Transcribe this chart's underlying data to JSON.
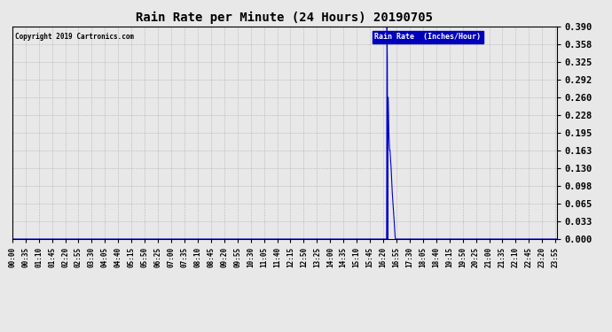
{
  "title": "Rain Rate per Minute (24 Hours) 20190705",
  "copyright_text": "Copyright 2019 Cartronics.com",
  "legend_label": "Rain Rate  (Inches/Hour)",
  "line_color": "#0000cc",
  "background_color": "#e8e8e8",
  "plot_bg_color": "#e8e8e8",
  "legend_bg_color": "#0000bb",
  "legend_text_color": "#ffffff",
  "yticks": [
    0.0,
    0.033,
    0.065,
    0.098,
    0.13,
    0.163,
    0.195,
    0.228,
    0.26,
    0.292,
    0.325,
    0.358,
    0.39
  ],
  "ymax": 0.39,
  "total_minutes": 1440,
  "rain_data": [
    [
      980,
      0.0
    ],
    [
      981,
      0.0
    ],
    [
      982,
      0.0
    ],
    [
      983,
      0.0
    ],
    [
      984,
      0.0
    ],
    [
      985,
      0.0
    ],
    [
      986,
      0.0
    ],
    [
      987,
      0.0
    ],
    [
      988,
      0.0
    ],
    [
      989,
      0.0
    ],
    [
      990,
      0.39
    ],
    [
      991,
      0.325
    ],
    [
      992,
      0.0
    ],
    [
      993,
      0.26
    ],
    [
      994,
      0.228
    ],
    [
      995,
      0.195
    ],
    [
      996,
      0.178
    ],
    [
      997,
      0.163
    ],
    [
      998,
      0.163
    ],
    [
      999,
      0.15
    ],
    [
      1000,
      0.14
    ],
    [
      1001,
      0.13
    ],
    [
      1002,
      0.115
    ],
    [
      1003,
      0.098
    ],
    [
      1004,
      0.085
    ],
    [
      1005,
      0.075
    ],
    [
      1006,
      0.065
    ],
    [
      1007,
      0.055
    ],
    [
      1008,
      0.043
    ],
    [
      1009,
      0.033
    ],
    [
      1010,
      0.02
    ],
    [
      1011,
      0.01
    ],
    [
      1012,
      0.0
    ]
  ],
  "xtick_step": 35,
  "xtick_labels": [
    "00:00",
    "00:35",
    "01:10",
    "01:45",
    "02:20",
    "02:55",
    "03:30",
    "04:05",
    "04:40",
    "05:15",
    "05:50",
    "06:25",
    "07:00",
    "07:35",
    "08:10",
    "08:45",
    "09:20",
    "09:55",
    "10:30",
    "11:05",
    "11:40",
    "12:15",
    "12:50",
    "13:25",
    "14:00",
    "14:35",
    "15:10",
    "15:45",
    "16:20",
    "16:55",
    "17:30",
    "18:05",
    "18:40",
    "19:15",
    "19:50",
    "20:25",
    "21:00",
    "21:35",
    "22:10",
    "22:45",
    "23:20",
    "23:55"
  ]
}
